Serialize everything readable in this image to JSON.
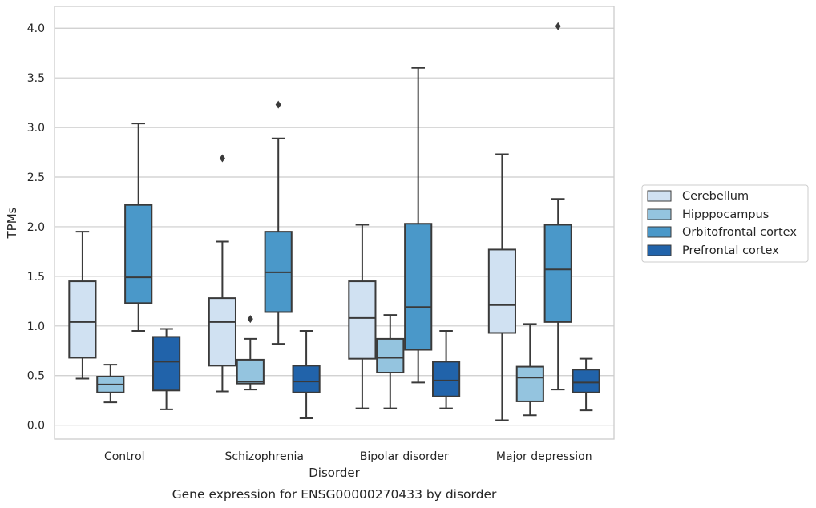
{
  "chart_data": {
    "type": "box",
    "xlabel": "Disorder",
    "ylabel": "TPMs",
    "caption": "Gene expression for ENSG00000270433 by disorder",
    "ylim": [
      -0.14,
      4.22
    ],
    "yticks": [
      "0.0",
      "0.5",
      "1.0",
      "1.5",
      "2.0",
      "2.5",
      "3.0",
      "3.5",
      "4.0"
    ],
    "ytick_values": [
      0.0,
      0.5,
      1.0,
      1.5,
      2.0,
      2.5,
      3.0,
      3.5,
      4.0
    ],
    "grid": "horizontal",
    "legend_position": "right",
    "categories": [
      "Control",
      "Schizophrenia",
      "Bipolar disorder",
      "Major depression"
    ],
    "series": [
      {
        "name": "Cerebellum",
        "color": "#d0e1f2",
        "boxes": [
          {
            "whislo": 0.47,
            "q1": 0.68,
            "med": 1.04,
            "q3": 1.45,
            "whishi": 1.95,
            "fliers": []
          },
          {
            "whislo": 0.34,
            "q1": 0.6,
            "med": 1.04,
            "q3": 1.28,
            "whishi": 1.85,
            "fliers": [
              2.69
            ]
          },
          {
            "whislo": 0.17,
            "q1": 0.67,
            "med": 1.08,
            "q3": 1.45,
            "whishi": 2.02,
            "fliers": []
          },
          {
            "whislo": 0.05,
            "q1": 0.93,
            "med": 1.21,
            "q3": 1.77,
            "whishi": 2.73,
            "fliers": []
          }
        ]
      },
      {
        "name": "Hipppocampus",
        "color": "#94c4df",
        "boxes": [
          {
            "whislo": 0.23,
            "q1": 0.33,
            "med": 0.41,
            "q3": 0.49,
            "whishi": 0.61,
            "fliers": []
          },
          {
            "whislo": 0.36,
            "q1": 0.42,
            "med": 0.44,
            "q3": 0.66,
            "whishi": 0.87,
            "fliers": [
              1.07
            ]
          },
          {
            "whislo": 0.17,
            "q1": 0.53,
            "med": 0.68,
            "q3": 0.87,
            "whishi": 1.11,
            "fliers": []
          },
          {
            "whislo": 0.1,
            "q1": 0.24,
            "med": 0.48,
            "q3": 0.59,
            "whishi": 1.02,
            "fliers": []
          }
        ]
      },
      {
        "name": "Orbitofrontal cortex",
        "color": "#4a98c9",
        "boxes": [
          {
            "whislo": 0.95,
            "q1": 1.23,
            "med": 1.49,
            "q3": 2.22,
            "whishi": 3.04,
            "fliers": []
          },
          {
            "whislo": 0.82,
            "q1": 1.14,
            "med": 1.54,
            "q3": 1.95,
            "whishi": 2.89,
            "fliers": [
              3.23
            ]
          },
          {
            "whislo": 0.43,
            "q1": 0.76,
            "med": 1.19,
            "q3": 2.03,
            "whishi": 3.6,
            "fliers": []
          },
          {
            "whislo": 0.36,
            "q1": 1.04,
            "med": 1.57,
            "q3": 2.02,
            "whishi": 2.28,
            "fliers": [
              4.02
            ]
          }
        ]
      },
      {
        "name": "Prefrontal cortex",
        "color": "#2163aa",
        "boxes": [
          {
            "whislo": 0.16,
            "q1": 0.35,
            "med": 0.64,
            "q3": 0.89,
            "whishi": 0.97,
            "fliers": []
          },
          {
            "whislo": 0.07,
            "q1": 0.33,
            "med": 0.44,
            "q3": 0.6,
            "whishi": 0.95,
            "fliers": []
          },
          {
            "whislo": 0.17,
            "q1": 0.29,
            "med": 0.45,
            "q3": 0.64,
            "whishi": 0.95,
            "fliers": []
          },
          {
            "whislo": 0.15,
            "q1": 0.33,
            "med": 0.43,
            "q3": 0.56,
            "whishi": 0.67,
            "fliers": []
          }
        ]
      }
    ]
  },
  "styles": {
    "line_color": "#3a3a3a",
    "grid_color": "#cccccc",
    "frame_color": "#cccccc"
  }
}
